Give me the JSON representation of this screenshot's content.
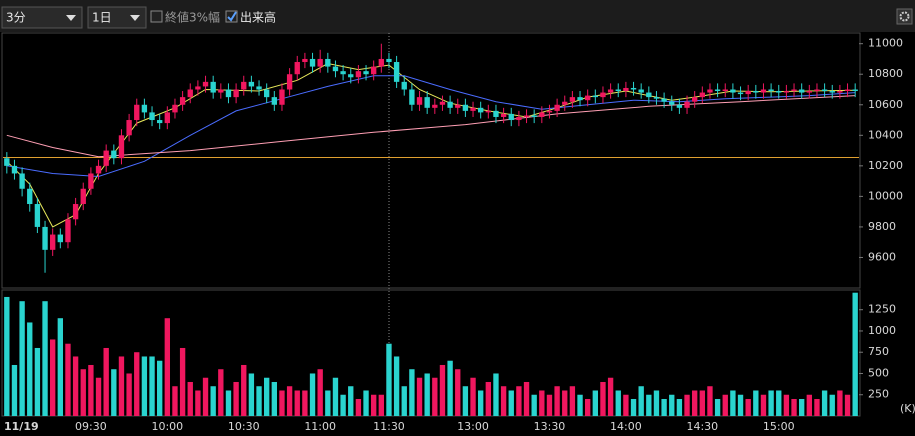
{
  "toolbar": {
    "interval": "3分",
    "period": "1日",
    "options": [
      {
        "label": "終値3%幅",
        "checked": false
      },
      {
        "label": "出来高",
        "checked": true
      }
    ]
  },
  "chart_data": [
    {
      "type": "candlestick",
      "categories": [
        "11/19",
        null,
        null,
        null,
        null,
        null,
        null,
        null,
        null,
        null,
        null,
        "09:30",
        null,
        null,
        null,
        null,
        null,
        null,
        null,
        null,
        null,
        "10:00",
        null,
        null,
        null,
        null,
        null,
        null,
        null,
        null,
        null,
        "10:30",
        null,
        null,
        null,
        null,
        null,
        null,
        null,
        null,
        null,
        "11:00",
        null,
        null,
        null,
        null,
        null,
        null,
        null,
        null,
        "11:30",
        null,
        null,
        null,
        null,
        null,
        null,
        null,
        null,
        null,
        null,
        "13:00",
        null,
        null,
        null,
        null,
        null,
        null,
        null,
        null,
        null,
        "13:30",
        null,
        null,
        null,
        null,
        null,
        null,
        null,
        null,
        null,
        "14:00",
        null,
        null,
        null,
        null,
        null,
        null,
        null,
        null,
        null,
        "14:30",
        null,
        null,
        null,
        null,
        null,
        null,
        null,
        null,
        null,
        "15:00",
        null,
        null,
        null,
        null,
        null,
        null,
        null,
        null,
        null,
        null
      ],
      "open": [
        10250,
        10200,
        10150,
        10050,
        9950,
        9800,
        9650,
        9750,
        9700,
        9850,
        9950,
        10050,
        10150,
        10200,
        10300,
        10250,
        10400,
        10500,
        10600,
        10550,
        10500,
        10480,
        10550,
        10600,
        10650,
        10700,
        10720,
        10750,
        10680,
        10700,
        10650,
        10700,
        10750,
        10720,
        10700,
        10650,
        10600,
        10700,
        10800,
        10880,
        10900,
        10850,
        10900,
        10850,
        10820,
        10800,
        10780,
        10820,
        10800,
        10850,
        10900,
        10880,
        10750,
        10700,
        10600,
        10650,
        10580,
        10600,
        10620,
        10580,
        10600,
        10560,
        10580,
        10550,
        10560,
        10520,
        10540,
        10500,
        10520,
        10530,
        10520,
        10550,
        10560,
        10600,
        10620,
        10650,
        10630,
        10660,
        10650,
        10680,
        10700,
        10690,
        10710,
        10700,
        10680,
        10650,
        10640,
        10620,
        10600,
        10580,
        10620,
        10650,
        10680,
        10700,
        10690,
        10700,
        10680,
        10670,
        10690,
        10680,
        10700,
        10690,
        10680,
        10690,
        10700,
        10680,
        10690,
        10700,
        10690,
        10680,
        10690,
        10700
      ],
      "high": [
        10290,
        10240,
        10190,
        10090,
        9990,
        9840,
        9790,
        9790,
        9890,
        9990,
        10090,
        10190,
        10240,
        10340,
        10340,
        10440,
        10540,
        10640,
        10640,
        10590,
        10540,
        10590,
        10640,
        10690,
        10740,
        10760,
        10790,
        10790,
        10740,
        10740,
        10740,
        10790,
        10790,
        10760,
        10740,
        10690,
        10740,
        10840,
        10920,
        10940,
        10940,
        10960,
        10940,
        10890,
        10860,
        10840,
        10860,
        10860,
        10890,
        11000,
        10940,
        10920,
        10790,
        10740,
        10690,
        10690,
        10640,
        10660,
        10660,
        10640,
        10640,
        10620,
        10620,
        10600,
        10600,
        10580,
        10580,
        10560,
        10570,
        10570,
        10590,
        10600,
        10640,
        10660,
        10690,
        10690,
        10700,
        10700,
        10720,
        10740,
        10740,
        10750,
        10750,
        10740,
        10720,
        10690,
        10680,
        10660,
        10640,
        10660,
        10690,
        10720,
        10740,
        10740,
        10740,
        10740,
        10720,
        10730,
        10730,
        10740,
        10740,
        10730,
        10730,
        10740,
        10740,
        10730,
        10740,
        10740,
        10730,
        10730,
        10740,
        10740
      ],
      "low": [
        10150,
        10110,
        10000,
        9900,
        9760,
        9500,
        9610,
        9660,
        9660,
        9810,
        9910,
        10010,
        10110,
        10160,
        10210,
        10210,
        10360,
        10460,
        10510,
        10460,
        10440,
        10440,
        10510,
        10560,
        10610,
        10660,
        10680,
        10640,
        10640,
        10610,
        10610,
        10660,
        10680,
        10660,
        10610,
        10560,
        10560,
        10660,
        10760,
        10840,
        10810,
        10810,
        10810,
        10780,
        10760,
        10740,
        10740,
        10760,
        10760,
        10810,
        10840,
        10710,
        10660,
        10560,
        10560,
        10540,
        10540,
        10560,
        10540,
        10540,
        10520,
        10520,
        10510,
        10510,
        10480,
        10480,
        10460,
        10460,
        10480,
        10480,
        10480,
        10510,
        10520,
        10560,
        10580,
        10590,
        10590,
        10610,
        10610,
        10640,
        10650,
        10650,
        10660,
        10640,
        10610,
        10600,
        10580,
        10560,
        10540,
        10540,
        10580,
        10610,
        10640,
        10650,
        10650,
        10640,
        10630,
        10630,
        10640,
        10640,
        10650,
        10640,
        10640,
        10650,
        10640,
        10640,
        10650,
        10650,
        10640,
        10640,
        10650,
        10650
      ],
      "close": [
        10200,
        10150,
        10050,
        9950,
        9800,
        9650,
        9750,
        9700,
        9850,
        9950,
        10050,
        10150,
        10200,
        10300,
        10250,
        10400,
        10500,
        10600,
        10550,
        10500,
        10480,
        10550,
        10600,
        10650,
        10700,
        10720,
        10750,
        10680,
        10700,
        10650,
        10700,
        10750,
        10720,
        10700,
        10650,
        10600,
        10700,
        10800,
        10880,
        10900,
        10850,
        10900,
        10850,
        10820,
        10800,
        10780,
        10820,
        10800,
        10850,
        10900,
        10880,
        10750,
        10700,
        10600,
        10650,
        10580,
        10600,
        10620,
        10580,
        10600,
        10560,
        10580,
        10550,
        10560,
        10520,
        10540,
        10500,
        10520,
        10530,
        10520,
        10550,
        10560,
        10600,
        10620,
        10650,
        10630,
        10660,
        10650,
        10680,
        10700,
        10690,
        10710,
        10700,
        10680,
        10650,
        10640,
        10620,
        10600,
        10580,
        10620,
        10650,
        10680,
        10700,
        10690,
        10700,
        10680,
        10670,
        10690,
        10680,
        10700,
        10690,
        10680,
        10690,
        10700,
        10680,
        10690,
        10700,
        10690,
        10680,
        10690,
        10700,
        10690
      ],
      "up_color": "#f0175f",
      "down_color": "#2ad4cf",
      "ylim": [
        9400,
        11070
      ],
      "yticks": [
        9600,
        9800,
        10000,
        10200,
        10400,
        10600,
        10800,
        11000
      ],
      "reference_line": {
        "value": 10255,
        "color": "#e0a030"
      },
      "lines": [
        {
          "color": "#e8e85a",
          "x": [
            0,
            3,
            6,
            9,
            12,
            17,
            22,
            26,
            33,
            38,
            42,
            46,
            50,
            54,
            58,
            63,
            68,
            72,
            76,
            81,
            87,
            90,
            95,
            100,
            105,
            111
          ],
          "values": [
            10230,
            10080,
            9800,
            9880,
            10150,
            10480,
            10580,
            10700,
            10690,
            10760,
            10870,
            10830,
            10860,
            10700,
            10610,
            10560,
            10520,
            10580,
            10650,
            10690,
            10630,
            10650,
            10690,
            10685,
            10690,
            10695
          ]
        },
        {
          "color": "#4a6cff",
          "x": [
            0,
            6,
            12,
            18,
            24,
            30,
            36,
            42,
            48,
            52,
            58,
            64,
            70,
            76,
            82,
            88,
            94,
            100,
            105,
            111
          ],
          "values": [
            10200,
            10150,
            10130,
            10230,
            10400,
            10560,
            10640,
            10720,
            10790,
            10790,
            10700,
            10620,
            10570,
            10600,
            10630,
            10620,
            10640,
            10650,
            10660,
            10680
          ]
        },
        {
          "color": "#ff9fb4",
          "x": [
            0,
            6,
            12,
            24,
            36,
            48,
            60,
            72,
            84,
            96,
            111
          ],
          "values": [
            10400,
            10320,
            10260,
            10300,
            10360,
            10420,
            10470,
            10540,
            10590,
            10620,
            10660
          ]
        }
      ]
    },
    {
      "type": "bar",
      "values": [
        1400,
        600,
        1350,
        1100,
        800,
        1350,
        900,
        1150,
        850,
        700,
        550,
        600,
        450,
        800,
        550,
        700,
        500,
        750,
        700,
        700,
        650,
        1150,
        350,
        800,
        400,
        300,
        450,
        350,
        550,
        300,
        400,
        600,
        500,
        350,
        450,
        400,
        300,
        350,
        300,
        300,
        500,
        550,
        300,
        450,
        250,
        350,
        200,
        300,
        250,
        250,
        850,
        700,
        350,
        550,
        450,
        500,
        450,
        600,
        650,
        550,
        350,
        450,
        300,
        400,
        500,
        350,
        300,
        350,
        400,
        250,
        300,
        250,
        350,
        300,
        350,
        250,
        200,
        300,
        400,
        450,
        300,
        250,
        200,
        350,
        250,
        300,
        200,
        250,
        200,
        250,
        300,
        300,
        350,
        200,
        250,
        300,
        250,
        200,
        300,
        250,
        300,
        300,
        250,
        200,
        200,
        250,
        200,
        300,
        250,
        300,
        250,
        1450
      ],
      "ylim": [
        0,
        1470
      ],
      "yticks": [
        250,
        500,
        750,
        1000,
        1250
      ],
      "unit_label": "(K)"
    }
  ]
}
